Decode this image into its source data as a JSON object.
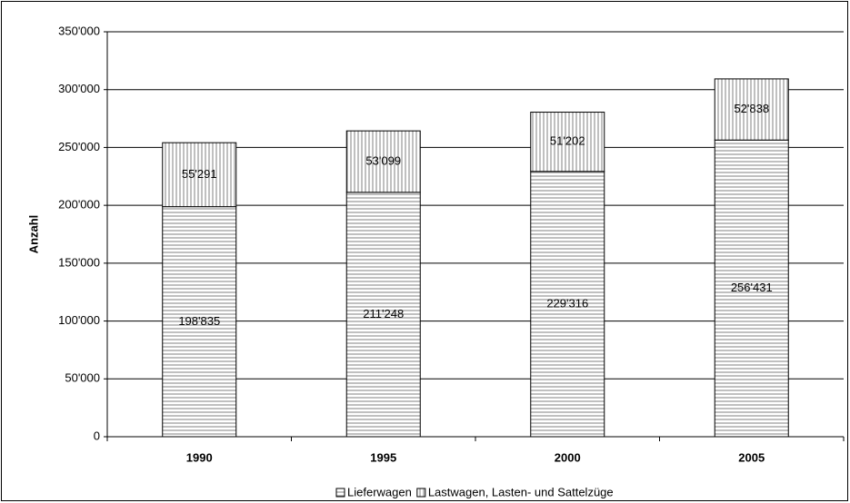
{
  "chart_data": {
    "type": "stacked-bar",
    "y_label": "Anzahl",
    "categories": [
      "1990",
      "1995",
      "2000",
      "2005"
    ],
    "series": [
      {
        "name": "Lieferwagen",
        "color": "#808080",
        "pattern": "horizontal",
        "values": [
          198835,
          211248,
          229316,
          256431
        ],
        "value_labels": [
          "198'835",
          "211'248",
          "229'316",
          "256'431"
        ]
      },
      {
        "name": "Lastwagen, Lasten- und Sattelzüge",
        "color": "#808080",
        "pattern": "vertical",
        "values": [
          55291,
          53099,
          51202,
          52838
        ],
        "value_labels": [
          "55'291",
          "53'099",
          "51'202",
          "52'838"
        ]
      }
    ],
    "ylim": [
      0,
      350000
    ],
    "yticks": [
      0,
      {
        "value": 50000,
        "label": "50'000"
      },
      {
        "value": 100000,
        "label": "100'000"
      },
      {
        "value": 150000,
        "label": "150'000"
      },
      {
        "value": 200000,
        "label": "200'000"
      },
      {
        "value": 250000,
        "label": "250'000"
      },
      {
        "value": 300000,
        "label": "300'000"
      },
      {
        "value": 350000,
        "label": "350'000"
      }
    ],
    "grid": true,
    "legend": "bottom"
  }
}
